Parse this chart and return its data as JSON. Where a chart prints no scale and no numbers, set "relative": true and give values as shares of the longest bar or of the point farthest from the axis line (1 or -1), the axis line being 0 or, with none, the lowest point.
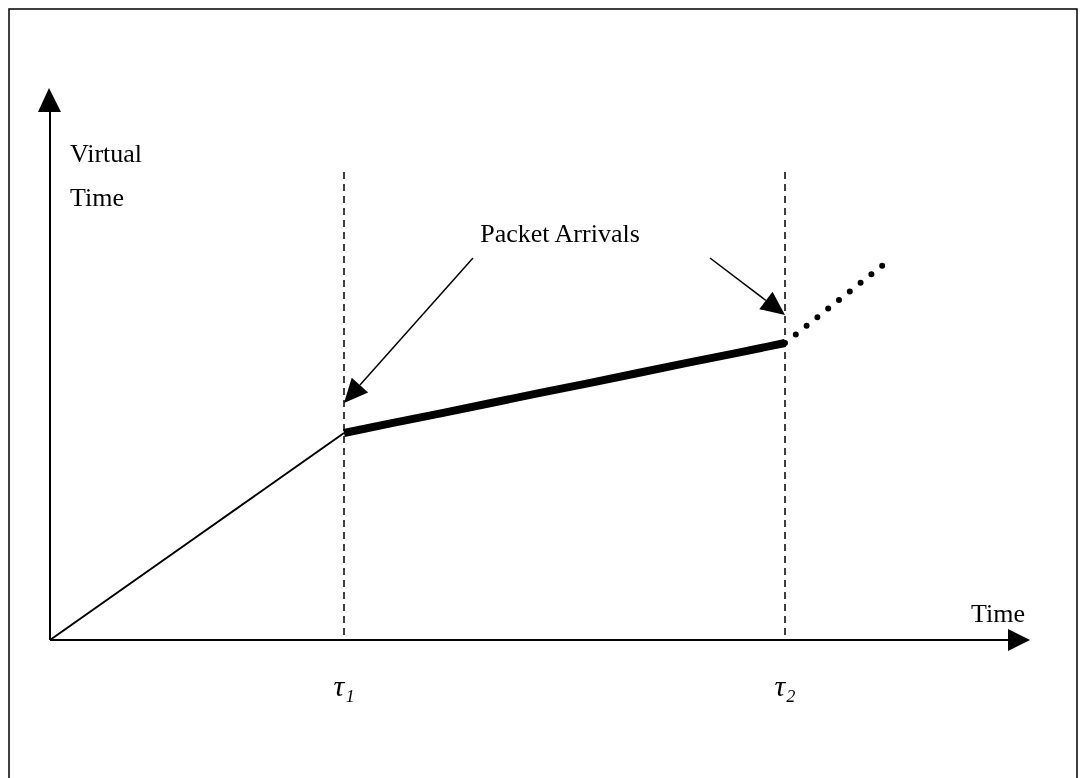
{
  "chart_data": {
    "type": "line",
    "relative": true,
    "xlabel": "Time",
    "ylabel": "Virtual Time",
    "annotations": [
      "Packet Arrivals"
    ],
    "categories": [
      null,
      null,
      null,
      null,
      null,
      null,
      "τ₁",
      null,
      null,
      null,
      null,
      null,
      null,
      null,
      null,
      "τ₂",
      null,
      null,
      null,
      null,
      null
    ],
    "ref_lines": [
      {
        "axis": "x",
        "value": "τ₁",
        "line_style": "dashed",
        "color": "#000000"
      },
      {
        "axis": "x",
        "value": "τ₂",
        "line_style": "dashed",
        "color": "#000000"
      }
    ],
    "series": [
      {
        "color": "#000000",
        "line_style": "solid",
        "values": [
          0,
          0.092,
          0.184,
          0.276,
          0.368,
          0.46,
          0.552,
          null,
          null,
          null,
          null,
          null,
          null,
          null,
          null,
          null,
          null,
          null,
          null,
          null,
          null
        ]
      },
      {
        "color": "#000000",
        "line_style": "solid",
        "values": [
          null,
          null,
          null,
          null,
          null,
          null,
          0.552,
          0.579,
          0.605,
          0.632,
          0.659,
          0.685,
          0.712,
          0.739,
          0.765,
          0.792,
          null,
          null,
          null,
          null,
          null
        ]
      },
      {
        "color": "#000000",
        "line_style": "dotted",
        "values": [
          null,
          null,
          null,
          null,
          null,
          null,
          null,
          null,
          null,
          null,
          null,
          null,
          null,
          null,
          null,
          0.792,
          0.896,
          1,
          null,
          null,
          null
        ]
      }
    ]
  }
}
